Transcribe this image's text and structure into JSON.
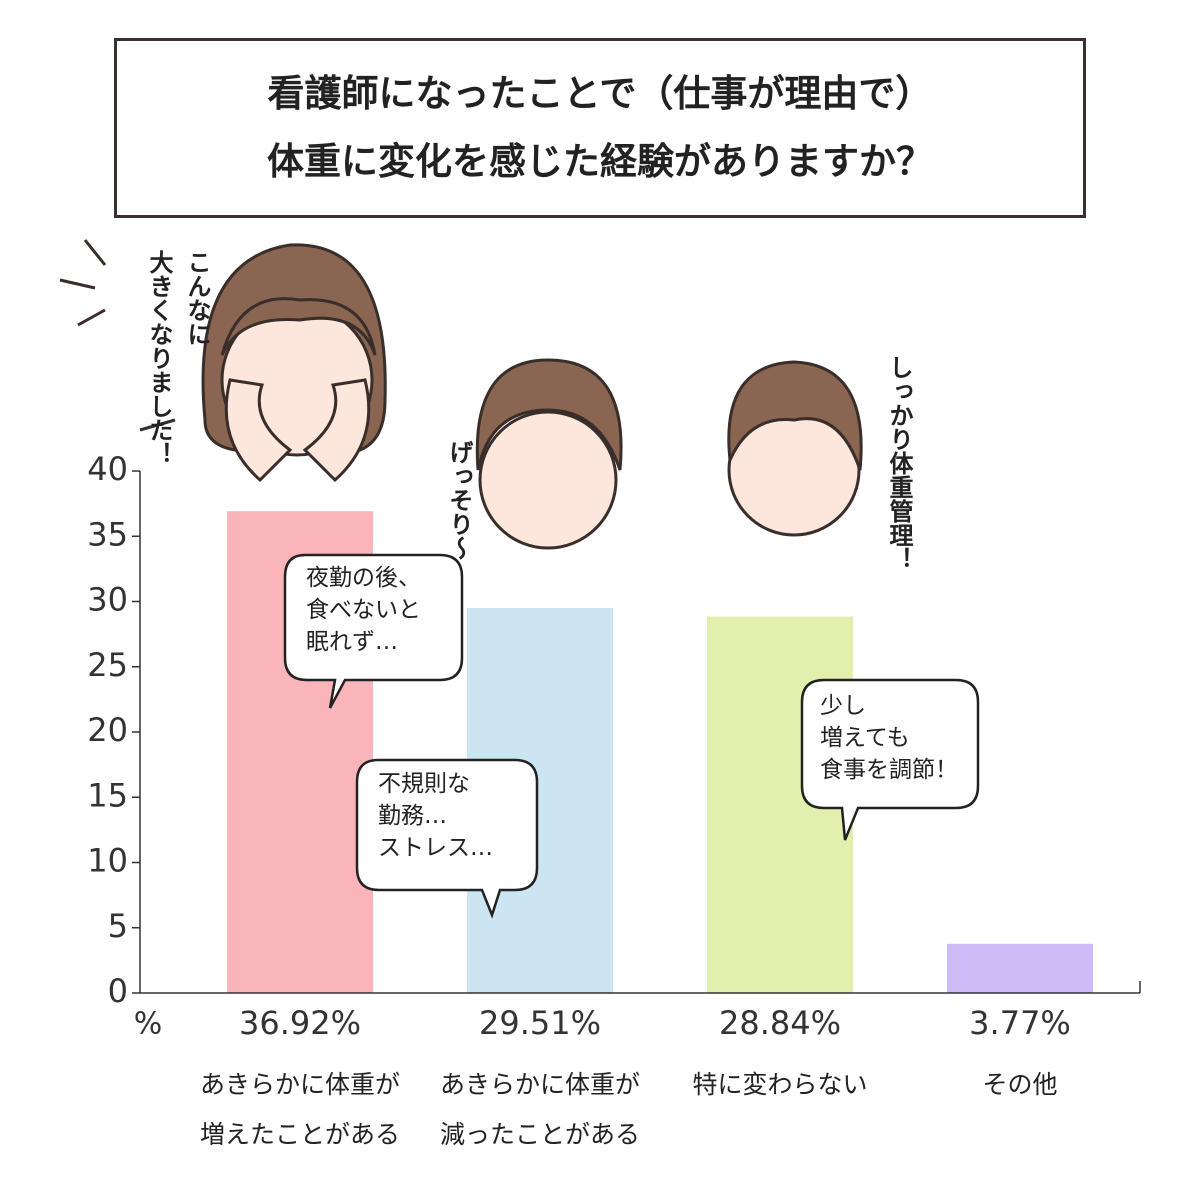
{
  "chart_data": {
    "type": "bar",
    "title": "看護師になったことで（仕事が理由で）\n体重に変化を感じた経験がありますか？",
    "y_unit": "%",
    "categories": [
      "あきらかに体重が\n増えたことがある",
      "あきらかに体重が\n減ったことがある",
      "特に変わらない",
      "その他"
    ],
    "values": [
      36.92,
      29.51,
      28.84,
      3.77
    ],
    "value_labels": [
      "36.92%",
      "29.51%",
      "28.84%",
      "3.77%"
    ],
    "colors": [
      "#f9b5b9",
      "#cbe5f2",
      "#e3efac",
      "#cdbaf6"
    ],
    "ylim": [
      0,
      40
    ],
    "yticks": [
      0,
      5,
      10,
      15,
      20,
      25,
      30,
      35,
      40
    ],
    "grid": false,
    "annotations": [
      "夜勤の後、\n食べないと\n眠れず…",
      "不規則な\n勤務…\nストレス…",
      "少し\n増えても\n食事を調節！",
      "こんなに\n大きくなりました！",
      "げっそり〜",
      "しっかり体重管理！"
    ]
  }
}
